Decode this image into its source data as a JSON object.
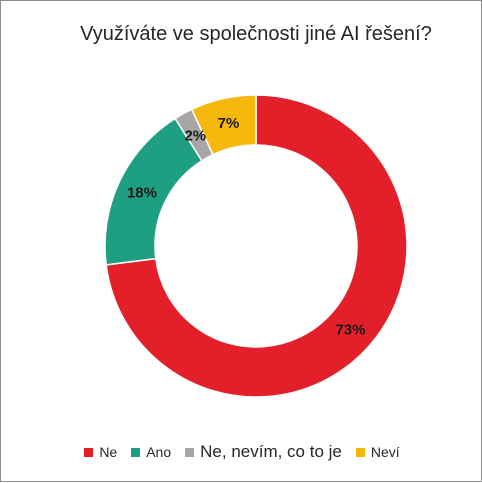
{
  "chart_data": {
    "type": "pie",
    "title": "Využíváte ve společnosti jiné AI řešení?",
    "categories": [
      "Ne",
      "Ano",
      "Ne, nevím, co to je",
      "Neví"
    ],
    "values": [
      73,
      18,
      2,
      7
    ],
    "labels": [
      "73%",
      "18%",
      "2%",
      "7%"
    ],
    "colors": [
      "#e3202a",
      "#1e9e82",
      "#a6a6a6",
      "#f7b80d"
    ],
    "donut": true,
    "legend_position": "bottom"
  }
}
